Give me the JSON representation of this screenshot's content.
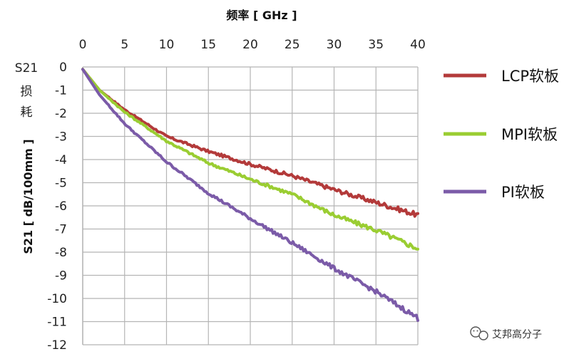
{
  "chart_data": {
    "type": "line",
    "title": "",
    "xlabel": "频率 [ GHz ]",
    "ylabel": "S21 [ dB/100mm ]",
    "y_side_label": [
      "S21",
      "损",
      "耗"
    ],
    "xlim": [
      0,
      40
    ],
    "ylim": [
      -12,
      0
    ],
    "x_ticks": [
      0,
      5,
      10,
      15,
      20,
      25,
      30,
      35,
      40
    ],
    "y_ticks": [
      0,
      -1,
      -2,
      -3,
      -4,
      -5,
      -6,
      -7,
      -8,
      -9,
      -10,
      -11,
      -12
    ],
    "x_axis_position": "top",
    "grid": true,
    "legend_position": "right",
    "x": [
      0,
      2,
      5,
      10,
      15,
      20,
      25,
      30,
      35,
      40
    ],
    "series": [
      {
        "name": "LCP软板",
        "color": "#b33a3a",
        "values": [
          -0.1,
          -1.0,
          -1.85,
          -3.0,
          -3.65,
          -4.2,
          -4.7,
          -5.3,
          -5.85,
          -6.4
        ]
      },
      {
        "name": "MPI软板",
        "color": "#9acd32",
        "values": [
          -0.1,
          -1.0,
          -1.95,
          -3.2,
          -4.15,
          -4.85,
          -5.5,
          -6.4,
          -7.05,
          -7.85
        ]
      },
      {
        "name": "PI软板",
        "color": "#7b5ba8",
        "values": [
          -0.1,
          -1.2,
          -2.45,
          -4.1,
          -5.45,
          -6.55,
          -7.6,
          -8.7,
          -9.7,
          -10.85
        ]
      }
    ]
  },
  "watermark": {
    "text": "艾邦高分子"
  }
}
